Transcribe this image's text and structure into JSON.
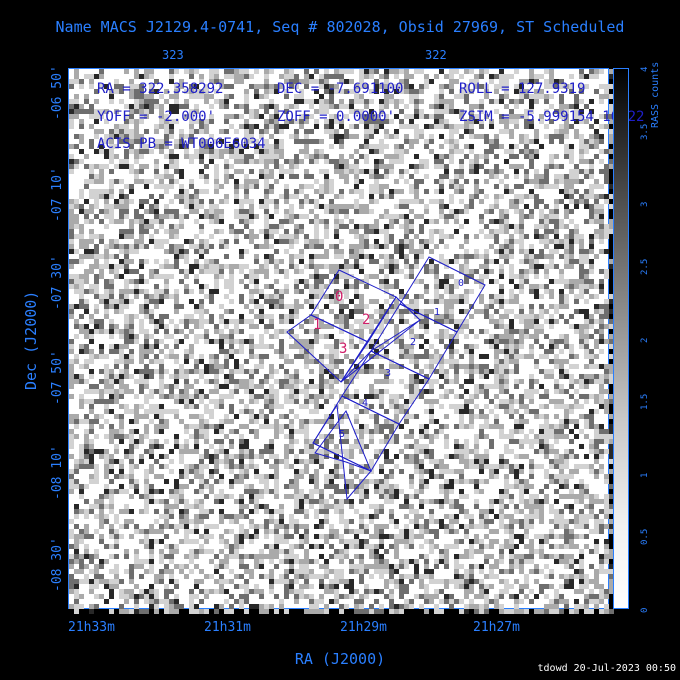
{
  "title": "Name MACS J2129.4-0741, Seq # 802028, Obsid 27969, ST Scheduled",
  "top_ticks": [
    "323",
    "322"
  ],
  "x_ticks": [
    "21h33m",
    "21h31m",
    "21h29m",
    "21h27m"
  ],
  "y_ticks": [
    "-06 50'",
    "-07 10'",
    "-07 30'",
    "-07 50'",
    "-08 10'",
    "-08 30'"
  ],
  "x_title": "RA (J2000)",
  "y_title": "Dec (J2000)",
  "info": {
    "ra": "RA = 322.358292",
    "dec": "DEC = -7.691100",
    "roll": "ROLL = 127.9319",
    "yoff": "YOFF = -2.000'",
    "zoff": "ZOFF = 0.0000'",
    "zsim": "ZSIM = -5.999154 10022",
    "acis_pb": "ACIS PB = WT006E6034"
  },
  "chips_i": [
    "0",
    "1",
    "2",
    "3"
  ],
  "chips_s": [
    "0",
    "1",
    "2",
    "3",
    "4",
    "5"
  ],
  "colorbar": {
    "label": "RASS counts",
    "ticks": [
      "0",
      "0.5",
      "1",
      "1.5",
      "2",
      "2.5",
      "3",
      "3.5",
      "4"
    ]
  },
  "footer": "tdowd 20-Jul-2023 00:50",
  "colors": {
    "axis": "#2a7fff",
    "chips": "#1e1ec8",
    "i_array": "#d0206a"
  }
}
